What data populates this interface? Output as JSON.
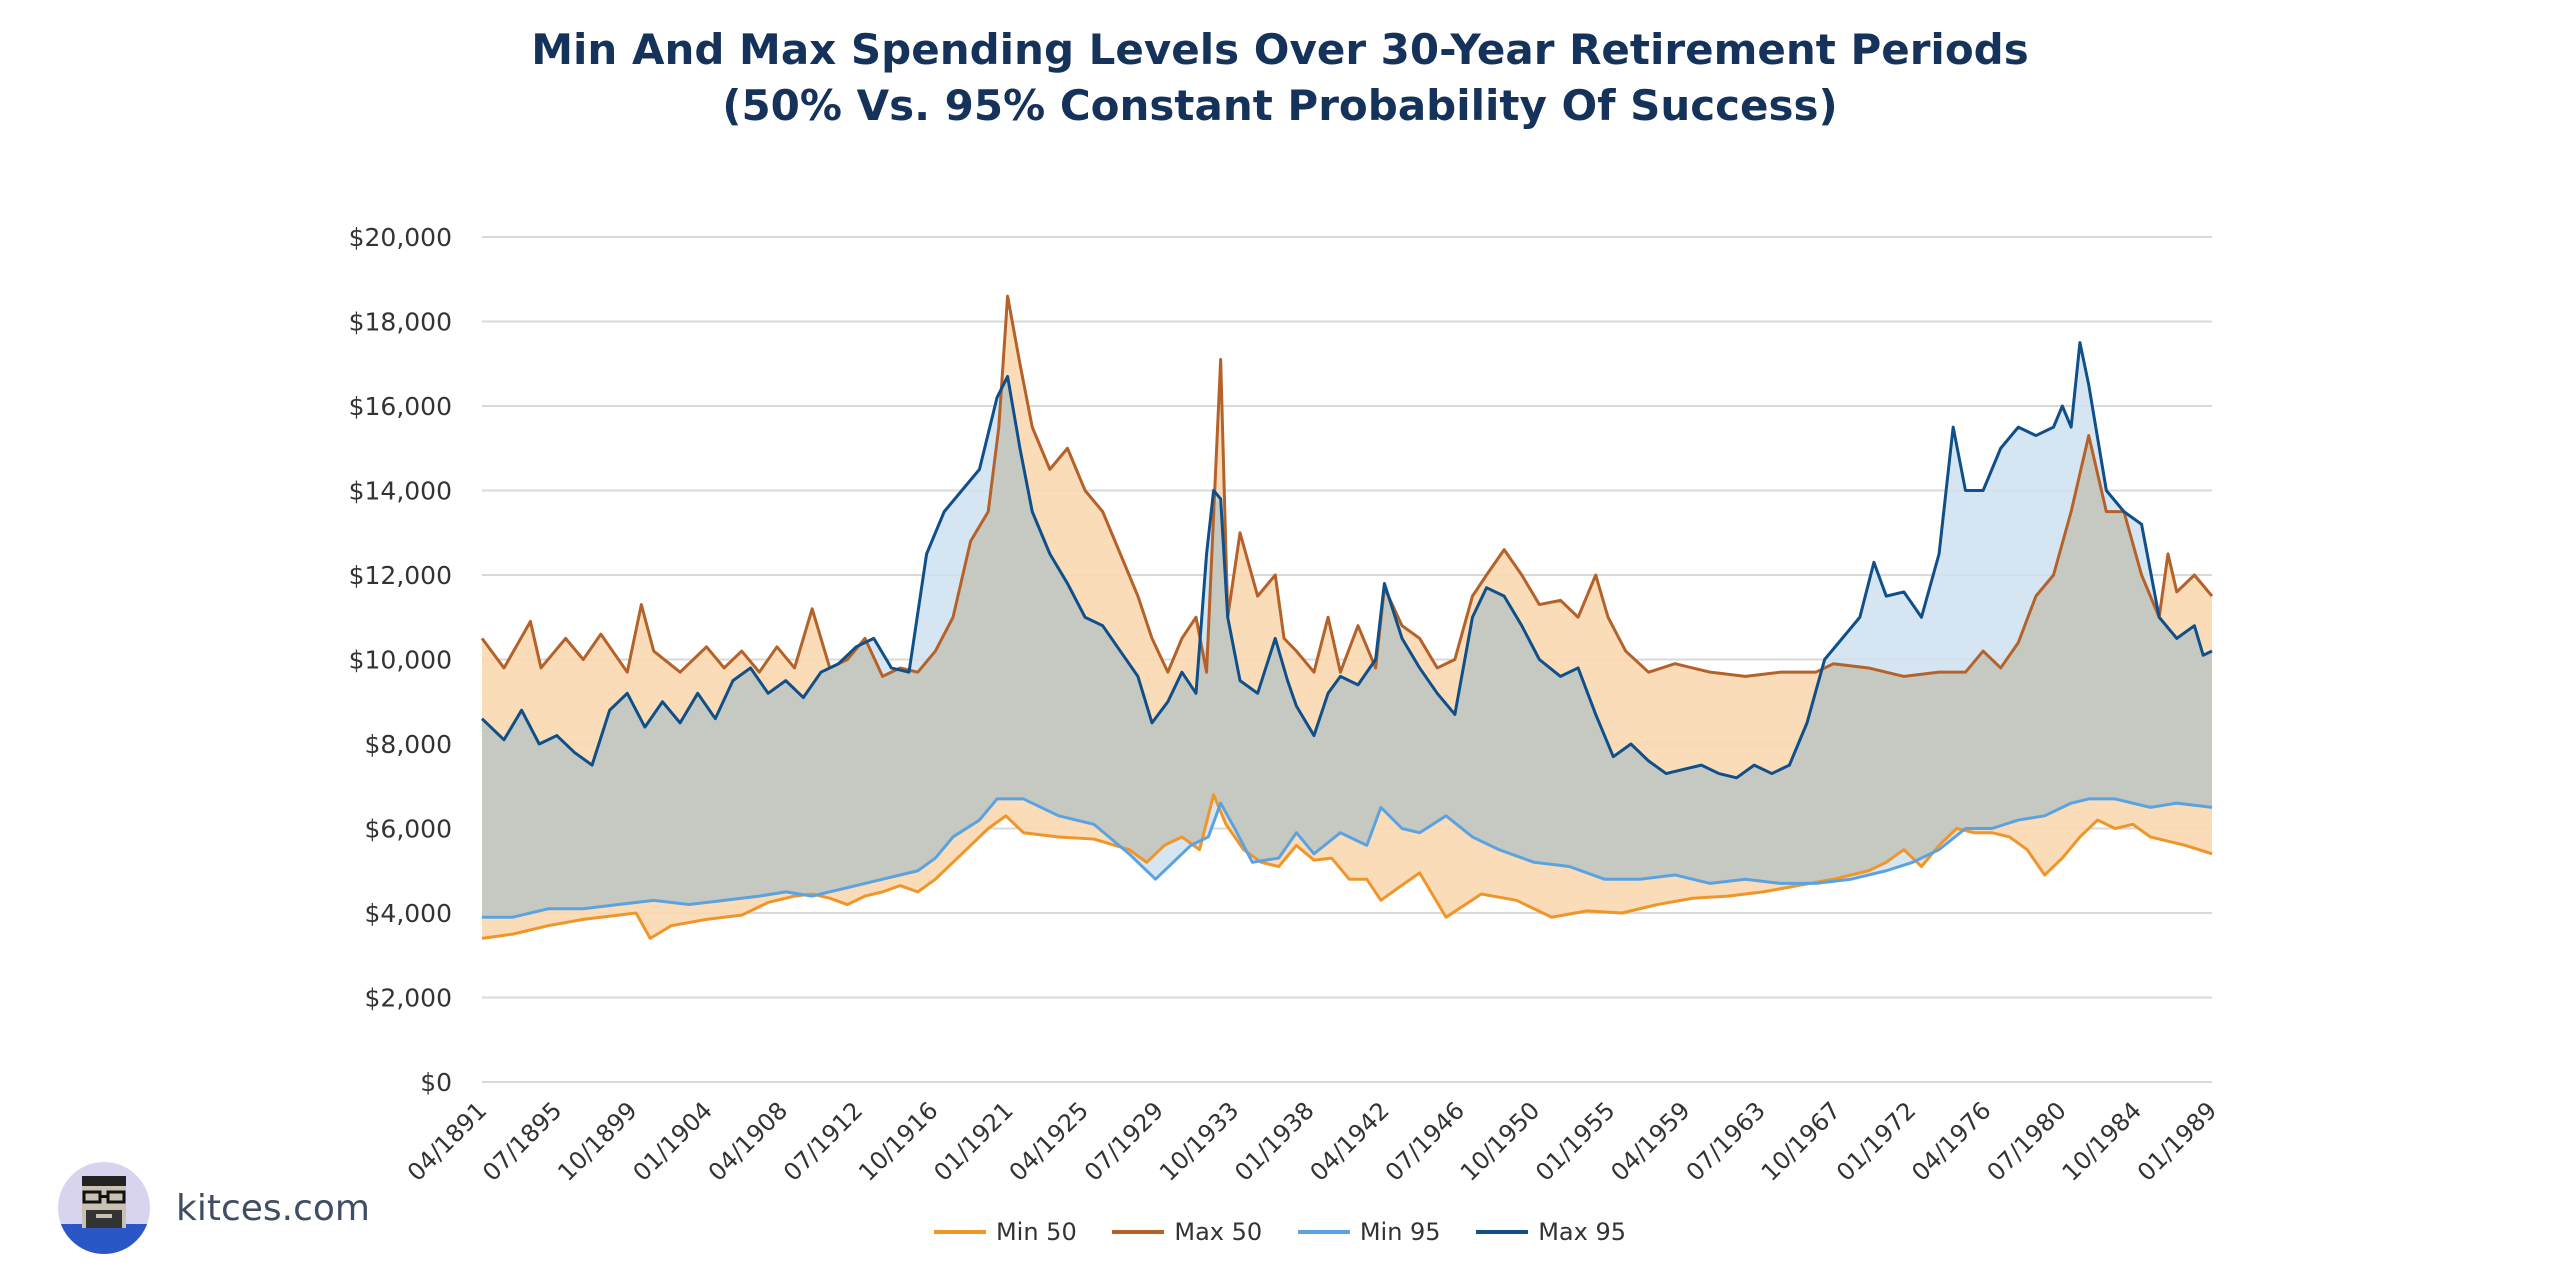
{
  "title_line1": "Min And Max Spending Levels Over 30-Year Retirement Periods",
  "title_line2": "(50% Vs. 95% Constant Probability Of Success)",
  "brand": "kitces.com",
  "chart_data": {
    "type": "area",
    "title": "Min And Max Spending Levels Over 30-Year Retirement Periods (50% Vs. 95% Constant Probability Of Success)",
    "ylim": [
      0,
      20000
    ],
    "yticks": [
      0,
      2000,
      4000,
      6000,
      8000,
      10000,
      12000,
      14000,
      16000,
      18000,
      20000
    ],
    "ytick_labels": [
      "$0",
      "$2,000",
      "$4,000",
      "$6,000",
      "$8,000",
      "$10,000",
      "$12,000",
      "$14,000",
      "$16,000",
      "$18,000",
      "$20,000"
    ],
    "xlim": [
      1891.25,
      1989.5
    ],
    "x_tick_labels": [
      "04/1891",
      "07/1895",
      "10/1899",
      "01/1904",
      "04/1908",
      "07/1912",
      "10/1916",
      "01/1921",
      "04/1925",
      "07/1929",
      "10/1933",
      "01/1938",
      "04/1942",
      "07/1946",
      "10/1950",
      "01/1955",
      "04/1959",
      "07/1963",
      "10/1967",
      "01/1972",
      "04/1976",
      "07/1980",
      "10/1984",
      "01/1989"
    ],
    "grid": true,
    "legend_position": "bottom",
    "series": [
      {
        "name": "Min 50",
        "color": "#f0952a",
        "fill": "#fbd8b0",
        "x": [
          1891.25,
          1893,
          1895,
          1897,
          1899,
          1900,
          1900.8,
          1902,
          1904,
          1906,
          1907.5,
          1909,
          1910,
          1911,
          1912,
          1913,
          1914,
          1915,
          1916,
          1917,
          1918,
          1919,
          1920,
          1921,
          1922,
          1924,
          1926,
          1928,
          1929,
          1930,
          1931,
          1932,
          1932.8,
          1933.5,
          1934.5,
          1935.5,
          1936.5,
          1937.5,
          1938.5,
          1939.5,
          1940.5,
          1941.5,
          1942.3,
          1943.3,
          1944.5,
          1946,
          1948,
          1950,
          1952,
          1954,
          1956,
          1958,
          1960,
          1962,
          1964,
          1966,
          1968,
          1970,
          1971,
          1972,
          1973,
          1974,
          1975,
          1976,
          1977,
          1978,
          1979,
          1980,
          1981,
          1982,
          1983,
          1984,
          1985,
          1986,
          1987,
          1988,
          1989.5
        ],
        "values": [
          3400,
          3500,
          3700,
          3850,
          3950,
          4000,
          3400,
          3700,
          3850,
          3950,
          4250,
          4400,
          4450,
          4350,
          4200,
          4400,
          4500,
          4650,
          4500,
          4800,
          5200,
          5600,
          6000,
          6300,
          5900,
          5800,
          5750,
          5500,
          5200,
          5600,
          5800,
          5500,
          6800,
          6100,
          5500,
          5200,
          5100,
          5600,
          5250,
          5300,
          4800,
          4800,
          4300,
          4600,
          4950,
          3900,
          4450,
          4300,
          3900,
          4050,
          4000,
          4200,
          4350,
          4400,
          4500,
          4650,
          4800,
          5000,
          5200,
          5500,
          5100,
          5600,
          6000,
          5900,
          5900,
          5800,
          5500,
          4900,
          5300,
          5800,
          6200,
          6000,
          6100,
          5800,
          5700,
          5600,
          5400
        ]
      },
      {
        "name": "Max 50",
        "color": "#b5622a",
        "fill": "#fbd8b0",
        "x": [
          1891.25,
          1892.5,
          1894,
          1894.6,
          1896,
          1897,
          1898,
          1899.5,
          1900.3,
          1901,
          1902.5,
          1904,
          1905,
          1906,
          1907,
          1908,
          1909,
          1910,
          1911,
          1912,
          1913,
          1914,
          1915,
          1916,
          1917,
          1918,
          1919,
          1920,
          1920.6,
          1921.1,
          1921.8,
          1922.5,
          1923.5,
          1924.5,
          1925.5,
          1926.5,
          1927.5,
          1928.5,
          1929.3,
          1930.2,
          1931,
          1931.8,
          1932.4,
          1932.7,
          1933.2,
          1933.6,
          1934.3,
          1935.3,
          1936.3,
          1936.8,
          1937.5,
          1938.5,
          1939.3,
          1940,
          1941,
          1942,
          1942.5,
          1943.5,
          1944.5,
          1945.5,
          1946.5,
          1947.5,
          1948.3,
          1949.3,
          1950.3,
          1951.3,
          1952.5,
          1953.5,
          1954.5,
          1955.2,
          1956.2,
          1957.5,
          1959,
          1961,
          1963,
          1965,
          1967,
          1968,
          1970,
          1972,
          1974,
          1975.5,
          1976.5,
          1977.5,
          1978.5,
          1979.5,
          1980.5,
          1981.5,
          1982.5,
          1983.5,
          1984.5,
          1985.5,
          1986.5,
          1987,
          1987.5,
          1988.5,
          1989.5
        ],
        "values": [
          10500,
          9800,
          10900,
          9800,
          10500,
          10000,
          10600,
          9700,
          11300,
          10200,
          9700,
          10300,
          9800,
          10200,
          9700,
          10300,
          9800,
          11200,
          9800,
          10000,
          10500,
          9600,
          9800,
          9700,
          10200,
          11000,
          12800,
          13500,
          15500,
          18600,
          17000,
          15500,
          14500,
          15000,
          14000,
          13500,
          12500,
          11500,
          10500,
          9700,
          10500,
          11000,
          9700,
          12500,
          17100,
          11000,
          13000,
          11500,
          12000,
          10500,
          10200,
          9700,
          11000,
          9700,
          10800,
          9800,
          11700,
          10800,
          10500,
          9800,
          10000,
          11500,
          12000,
          12600,
          12000,
          11300,
          11400,
          11000,
          12000,
          11000,
          10200,
          9700,
          9900,
          9700,
          9600,
          9700,
          9700,
          9900,
          9800,
          9600,
          9700,
          9700,
          10200,
          9800,
          10400,
          11500,
          12000,
          13500,
          15300,
          13500,
          13500,
          12000,
          11000,
          12500,
          11600,
          12000,
          11500
        ]
      },
      {
        "name": "Min 95",
        "color": "#5ba3e0",
        "fill": "#cfe1f0",
        "x": [
          1891.25,
          1893,
          1895,
          1897,
          1899,
          1901,
          1903,
          1905,
          1907,
          1908.5,
          1910,
          1912,
          1914,
          1916,
          1917,
          1918,
          1919.5,
          1920.5,
          1922,
          1924,
          1926,
          1928,
          1929.5,
          1930.5,
          1931.5,
          1932.5,
          1933.2,
          1934,
          1935,
          1936.5,
          1937.5,
          1938.5,
          1940,
          1941.5,
          1942.3,
          1943.5,
          1944.5,
          1946,
          1947.5,
          1949,
          1951,
          1953,
          1955,
          1957,
          1959,
          1961,
          1963,
          1965,
          1967,
          1969,
          1971,
          1972.5,
          1974,
          1975.5,
          1977,
          1978.5,
          1980,
          1981.5,
          1982.5,
          1984,
          1986,
          1987.5,
          1989.5
        ],
        "values": [
          3900,
          3900,
          4100,
          4100,
          4200,
          4300,
          4200,
          4300,
          4400,
          4500,
          4400,
          4600,
          4800,
          5000,
          5300,
          5800,
          6200,
          6700,
          6700,
          6300,
          6100,
          5400,
          4800,
          5200,
          5600,
          5800,
          6600,
          6000,
          5200,
          5300,
          5900,
          5400,
          5900,
          5600,
          6500,
          6000,
          5900,
          6300,
          5800,
          5500,
          5200,
          5100,
          4800,
          4800,
          4900,
          4700,
          4800,
          4700,
          4700,
          4800,
          5000,
          5200,
          5500,
          6000,
          6000,
          6200,
          6300,
          6600,
          6700,
          6700,
          6500,
          6600,
          6500
        ]
      },
      {
        "name": "Max 95",
        "color": "#0f4f8a",
        "fill": "#c5c7bf",
        "x": [
          1891.25,
          1892.5,
          1893.5,
          1894.5,
          1895.5,
          1896.5,
          1897.5,
          1898.5,
          1899.5,
          1900.5,
          1901.5,
          1902.5,
          1903.5,
          1904.5,
          1905.5,
          1906.5,
          1907.5,
          1908.5,
          1909.5,
          1910.5,
          1911.5,
          1912.5,
          1913.5,
          1914.5,
          1915.5,
          1916.5,
          1917.5,
          1918.5,
          1919.5,
          1920.5,
          1921.1,
          1921.8,
          1922.5,
          1923.5,
          1924.5,
          1925.5,
          1926.5,
          1927.5,
          1928.5,
          1929.3,
          1930.2,
          1931,
          1931.8,
          1932.4,
          1932.8,
          1933.2,
          1933.6,
          1934.3,
          1935.3,
          1936.3,
          1937,
          1937.5,
          1938.5,
          1939.3,
          1940,
          1941,
          1942,
          1942.5,
          1943.5,
          1944.5,
          1945.5,
          1946.5,
          1947.5,
          1948.3,
          1949.3,
          1950.3,
          1951.3,
          1952.5,
          1953.5,
          1954.5,
          1955.5,
          1956.5,
          1957.5,
          1958.5,
          1959.5,
          1960.5,
          1961.5,
          1962.5,
          1963.5,
          1964.5,
          1965.5,
          1966.5,
          1967.5,
          1968.5,
          1969.5,
          1970.3,
          1971,
          1972,
          1973,
          1974,
          1974.8,
          1975.5,
          1976.5,
          1977.5,
          1978.5,
          1979.5,
          1980.5,
          1981,
          1981.5,
          1982,
          1982.5,
          1983.5,
          1984.5,
          1985.5,
          1986.5,
          1987.5,
          1988.5,
          1989,
          1989.5
        ],
        "values": [
          8600,
          8100,
          8800,
          8000,
          8200,
          7800,
          7500,
          8800,
          9200,
          8400,
          9000,
          8500,
          9200,
          8600,
          9500,
          9800,
          9200,
          9500,
          9100,
          9700,
          9900,
          10300,
          10500,
          9800,
          9700,
          12500,
          13500,
          14000,
          14500,
          16200,
          16700,
          15000,
          13500,
          12500,
          11800,
          11000,
          10800,
          10200,
          9600,
          8500,
          9000,
          9700,
          9200,
          12500,
          14000,
          13800,
          11000,
          9500,
          9200,
          10500,
          9500,
          8900,
          8200,
          9200,
          9600,
          9400,
          10000,
          11800,
          10500,
          9800,
          9200,
          8700,
          11000,
          11700,
          11500,
          10800,
          10000,
          9600,
          9800,
          8700,
          7700,
          8000,
          7600,
          7300,
          7400,
          7500,
          7300,
          7200,
          7500,
          7300,
          7500,
          8500,
          10000,
          10500,
          11000,
          12300,
          11500,
          11600,
          11000,
          12500,
          15500,
          14000,
          14000,
          15000,
          15500,
          15300,
          15500,
          16000,
          15500,
          17500,
          16500,
          14000,
          13500,
          13200,
          11000,
          10500,
          10800,
          10100,
          10200
        ]
      }
    ]
  }
}
